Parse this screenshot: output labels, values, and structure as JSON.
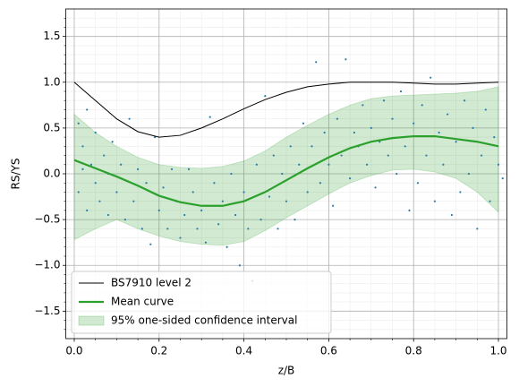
{
  "chart_data": {
    "type": "line",
    "xlabel": "z/B",
    "ylabel": "RS/YS",
    "xlim": [
      -0.02,
      1.02
    ],
    "ylim": [
      -1.8,
      1.8
    ],
    "xticks": [
      {
        "value": 0,
        "label": "0.0"
      },
      0.2,
      0.4,
      0.6,
      0.8,
      {
        "value": 1,
        "label": "1.0"
      }
    ],
    "yticks": [
      {
        "value": -1.5,
        "label": "−1.5"
      },
      {
        "value": -1,
        "label": "−1.0"
      },
      {
        "value": -0.5,
        "label": "−0.5"
      },
      {
        "value": 0,
        "label": "0.0"
      },
      0.5,
      {
        "value": 1,
        "label": "1.0"
      },
      1.5
    ],
    "xminorticks": [
      0.05,
      0.1,
      0.15,
      0.25,
      0.3,
      0.35,
      0.45,
      0.5,
      0.55,
      0.65,
      0.7,
      0.75,
      0.85,
      0.9,
      0.95
    ],
    "yminorticks": [
      -1.7,
      -1.6,
      -1.4,
      -1.3,
      -1.2,
      -1.1,
      -0.9,
      -0.8,
      -0.7,
      -0.6,
      -0.4,
      -0.3,
      -0.2,
      -0.1,
      0.1,
      0.2,
      0.3,
      0.4,
      0.6,
      0.7,
      0.8,
      0.9,
      1.1,
      1.2,
      1.3,
      1.4,
      1.6,
      1.7
    ],
    "grid": true,
    "legend": "lower left",
    "x": [
      0,
      0.05,
      0.1,
      0.15,
      0.2,
      0.25,
      0.3,
      0.35,
      0.4,
      0.45,
      0.5,
      0.55,
      0.6,
      0.65,
      0.7,
      0.75,
      0.8,
      0.85,
      0.9,
      0.95,
      1.0
    ],
    "series": [
      {
        "name": "BS7910 level 2",
        "type": "line",
        "color": "#000000",
        "width": 1,
        "values": [
          1.0,
          0.8,
          0.6,
          0.46,
          0.4,
          0.42,
          0.5,
          0.6,
          0.71,
          0.81,
          0.89,
          0.95,
          0.98,
          1.0,
          1.0,
          1.0,
          0.99,
          0.98,
          0.98,
          0.99,
          1.0
        ]
      },
      {
        "name": "Mean curve",
        "type": "line",
        "color": "#2ca02c",
        "width": 2.2,
        "values": [
          0.15,
          0.06,
          -0.03,
          -0.13,
          -0.24,
          -0.31,
          -0.35,
          -0.35,
          -0.3,
          -0.2,
          -0.07,
          0.06,
          0.18,
          0.28,
          0.35,
          0.39,
          0.41,
          0.41,
          0.38,
          0.35,
          0.3
        ]
      },
      {
        "name": "95% one-sided confidence interval",
        "type": "band",
        "color": "#2ca02c",
        "upper": [
          0.65,
          0.45,
          0.3,
          0.18,
          0.1,
          0.07,
          0.06,
          0.08,
          0.14,
          0.25,
          0.4,
          0.53,
          0.65,
          0.75,
          0.82,
          0.85,
          0.86,
          0.87,
          0.88,
          0.9,
          0.95
        ],
        "lower": [
          -0.72,
          -0.6,
          -0.5,
          -0.6,
          -0.68,
          -0.74,
          -0.77,
          -0.78,
          -0.74,
          -0.62,
          -0.48,
          -0.35,
          -0.22,
          -0.1,
          -0.02,
          0.04,
          0.05,
          0.02,
          -0.05,
          -0.2,
          -0.42
        ]
      }
    ],
    "scatter": {
      "color": "#2b7bab",
      "x": [
        0.01,
        0.01,
        0.02,
        0.02,
        0.03,
        0.03,
        0.04,
        0.05,
        0.05,
        0.06,
        0.07,
        0.08,
        0.08,
        0.09,
        0.1,
        0.11,
        0.12,
        0.13,
        0.14,
        0.15,
        0.16,
        0.17,
        0.18,
        0.19,
        0.2,
        0.21,
        0.22,
        0.23,
        0.24,
        0.25,
        0.26,
        0.27,
        0.28,
        0.29,
        0.3,
        0.31,
        0.32,
        0.33,
        0.34,
        0.35,
        0.36,
        0.37,
        0.38,
        0.39,
        0.4,
        0.41,
        0.42,
        0.43,
        0.44,
        0.45,
        0.46,
        0.47,
        0.48,
        0.49,
        0.5,
        0.51,
        0.52,
        0.53,
        0.54,
        0.55,
        0.56,
        0.57,
        0.58,
        0.59,
        0.6,
        0.61,
        0.62,
        0.63,
        0.64,
        0.65,
        0.66,
        0.67,
        0.68,
        0.69,
        0.7,
        0.71,
        0.72,
        0.73,
        0.74,
        0.75,
        0.76,
        0.77,
        0.78,
        0.79,
        0.8,
        0.81,
        0.82,
        0.83,
        0.84,
        0.85,
        0.86,
        0.87,
        0.88,
        0.89,
        0.9,
        0.91,
        0.92,
        0.93,
        0.94,
        0.95,
        0.96,
        0.97,
        0.98,
        0.99,
        1.0,
        1.01
      ],
      "y": [
        0.55,
        -0.2,
        0.3,
        0.05,
        -0.4,
        0.7,
        0.1,
        -0.1,
        0.45,
        -0.3,
        0.2,
        -0.45,
        0.0,
        0.35,
        -0.2,
        0.1,
        -0.5,
        0.6,
        -0.3,
        0.05,
        -0.6,
        -0.1,
        -0.77,
        0.4,
        -0.4,
        -0.15,
        -0.6,
        0.05,
        -0.3,
        -0.7,
        -0.45,
        0.05,
        -0.2,
        -0.6,
        -0.4,
        -0.75,
        0.62,
        -0.1,
        -0.55,
        -0.3,
        -0.8,
        0.0,
        -0.45,
        -1.0,
        -0.2,
        -0.6,
        -1.17,
        0.1,
        -0.5,
        0.85,
        -0.25,
        0.2,
        -0.6,
        0.0,
        -0.3,
        0.3,
        -0.5,
        0.1,
        0.55,
        -0.2,
        0.3,
        1.22,
        -0.1,
        0.45,
        0.1,
        -0.35,
        0.6,
        0.2,
        1.25,
        -0.05,
        0.45,
        0.3,
        0.75,
        0.1,
        0.5,
        -0.15,
        0.35,
        0.8,
        0.2,
        0.6,
        0.0,
        0.9,
        0.3,
        -0.4,
        0.55,
        -0.1,
        0.75,
        0.2,
        1.05,
        -0.3,
        0.45,
        0.1,
        0.65,
        -0.45,
        0.35,
        -0.2,
        0.8,
        0.0,
        0.5,
        -0.6,
        0.2,
        0.7,
        -0.3,
        0.4,
        0.1,
        -0.05
      ]
    }
  }
}
